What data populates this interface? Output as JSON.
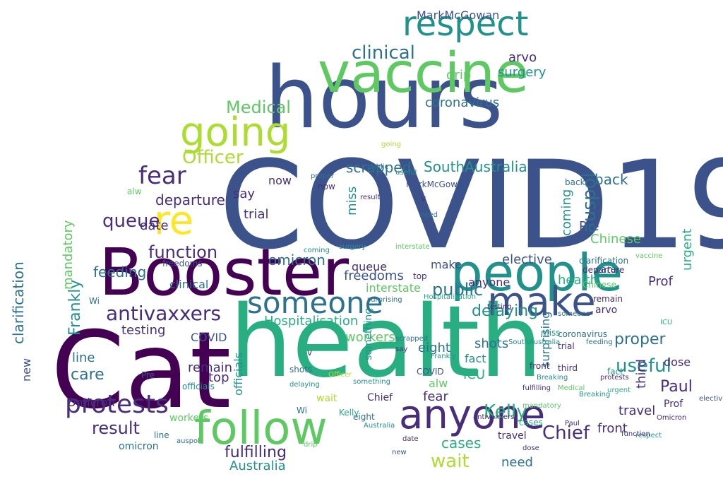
{
  "word_cloud": {
    "shape": "cloud",
    "palette": [
      "#440154",
      "#472d7b",
      "#3b528b",
      "#2c728e",
      "#21918c",
      "#28ae80",
      "#5ec962",
      "#addc30",
      "#fde725"
    ],
    "words": [
      {
        "text": "COVID19",
        "color": "#3b528b"
      },
      {
        "text": "hours",
        "color": "#3b528b"
      },
      {
        "text": "Booster",
        "color": "#440154"
      },
      {
        "text": "Cat",
        "color": "#440154"
      },
      {
        "text": "health",
        "color": "#28ae80"
      },
      {
        "text": "people",
        "color": "#21918c"
      },
      {
        "text": "vaccine",
        "color": "#5ec962"
      },
      {
        "text": "anyone",
        "color": "#472d7b"
      },
      {
        "text": "follow",
        "color": "#5ec962"
      },
      {
        "text": "make",
        "color": "#3b528b"
      },
      {
        "text": "going",
        "color": "#addc30"
      },
      {
        "text": "respect",
        "color": "#21918c"
      },
      {
        "text": "re",
        "color": "#fde725"
      },
      {
        "text": "someone",
        "color": "#2c728e"
      },
      {
        "text": "fear",
        "color": "#472d7b"
      },
      {
        "text": "protests",
        "color": "#472d7b"
      },
      {
        "text": "antivaxxers",
        "color": "#472d7b"
      },
      {
        "text": "clinical",
        "color": "#2c728e"
      },
      {
        "text": "Medical",
        "color": "#5ec962"
      },
      {
        "text": "Officer",
        "color": "#addc30"
      },
      {
        "text": "queue",
        "color": "#472d7b"
      },
      {
        "text": "function",
        "color": "#472d7b"
      },
      {
        "text": "public",
        "color": "#2c728e"
      },
      {
        "text": "delaying",
        "color": "#21918c"
      },
      {
        "text": "useful",
        "color": "#21918c"
      },
      {
        "text": "Chief",
        "color": "#472d7b"
      },
      {
        "text": "Kelly",
        "color": "#28ae80"
      },
      {
        "text": "wait",
        "color": "#addc30"
      },
      {
        "text": "fulfilling",
        "color": "#472d7b"
      },
      {
        "text": "result",
        "color": "#472d7b"
      },
      {
        "text": "cases",
        "color": "#28ae80"
      },
      {
        "text": "Paul",
        "color": "#472d7b"
      },
      {
        "text": "proper",
        "color": "#2c728e"
      },
      {
        "text": "eight",
        "color": "#2c728e"
      },
      {
        "text": "Frankly",
        "color": "#21918c"
      },
      {
        "text": "care",
        "color": "#2c728e"
      },
      {
        "text": "departure",
        "color": "#472d7b"
      },
      {
        "text": "SouthAustralia",
        "color": "#21918c"
      },
      {
        "text": "auspol",
        "color": "#2c728e"
      },
      {
        "text": "omicron",
        "color": "#2c728e"
      },
      {
        "text": "feeding",
        "color": "#2c728e"
      },
      {
        "text": "testing",
        "color": "#472d7b"
      },
      {
        "text": "Hospitalisation",
        "color": "#28ae80"
      },
      {
        "text": "surgery",
        "color": "#21918c"
      },
      {
        "text": "clarification",
        "color": "#2c728e"
      },
      {
        "text": "coronavirus",
        "color": "#2c728e"
      },
      {
        "text": "interstate",
        "color": "#5ec962"
      },
      {
        "text": "freedoms",
        "color": "#3b528b"
      },
      {
        "text": "elective",
        "color": "#3b528b"
      },
      {
        "text": "third",
        "color": "#472d7b"
      },
      {
        "text": "shots",
        "color": "#2c728e"
      },
      {
        "text": "drip",
        "color": "#5ec962"
      },
      {
        "text": "scrapped",
        "color": "#2c728e"
      },
      {
        "text": "Chinese",
        "color": "#5ec962"
      },
      {
        "text": "workers",
        "color": "#5ec962"
      },
      {
        "text": "urgent",
        "color": "#28ae80"
      },
      {
        "text": "mandatory",
        "color": "#5ec962"
      },
      {
        "text": "Prof",
        "color": "#472d7b"
      },
      {
        "text": "Australia",
        "color": "#21918c"
      },
      {
        "text": "MarkMcGowan",
        "color": "#3b528b"
      },
      {
        "text": "Omicron",
        "color": "#472d7b"
      },
      {
        "text": "arvo",
        "color": "#472d7b"
      },
      {
        "text": "miss",
        "color": "#21918c"
      },
      {
        "text": "need",
        "color": "#2c728e"
      },
      {
        "text": "trial",
        "color": "#472d7b"
      },
      {
        "text": "front",
        "color": "#472d7b"
      },
      {
        "text": "travel",
        "color": "#472d7b"
      },
      {
        "text": "dose",
        "color": "#472d7b"
      },
      {
        "text": "ICU",
        "color": "#28ae80"
      },
      {
        "text": "new",
        "color": "#3b528b"
      },
      {
        "text": "remain",
        "color": "#472d7b"
      },
      {
        "text": "date",
        "color": "#472d7b"
      },
      {
        "text": "line",
        "color": "#2c728e"
      },
      {
        "text": "top",
        "color": "#472d7b"
      },
      {
        "text": "back",
        "color": "#2c728e"
      },
      {
        "text": "say",
        "color": "#472d7b"
      },
      {
        "text": "fact",
        "color": "#21918c"
      },
      {
        "text": "coming",
        "color": "#21918c"
      },
      {
        "text": "Breaking",
        "color": "#21918c"
      },
      {
        "text": "Pre",
        "color": "#3b528b"
      },
      {
        "text": "officials",
        "color": "#21918c"
      },
      {
        "text": "COVID",
        "color": "#3b528b"
      },
      {
        "text": "alw",
        "color": "#5ec962"
      },
      {
        "text": "something",
        "color": "#21918c"
      },
      {
        "text": "surprising",
        "color": "#2c728e"
      },
      {
        "text": "now",
        "color": "#472d7b"
      },
      {
        "text": "Wi",
        "color": "#2c728e"
      },
      {
        "text": "v",
        "color": "#472d7b"
      }
    ]
  }
}
